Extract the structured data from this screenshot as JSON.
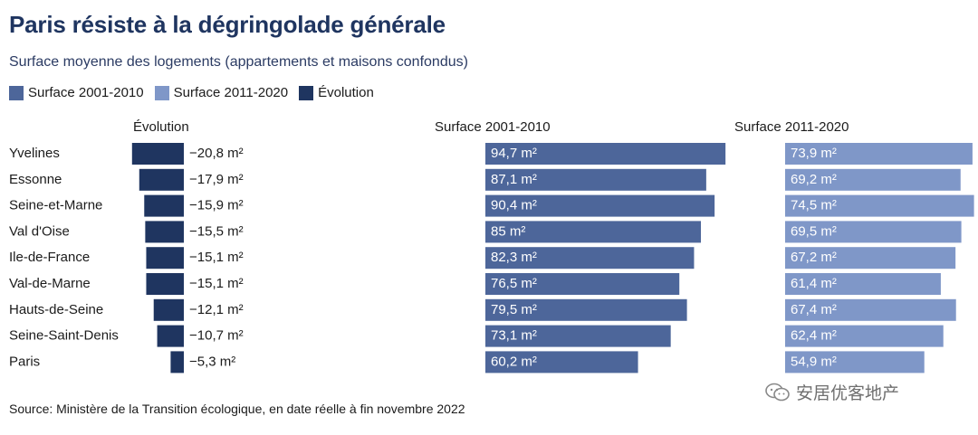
{
  "title": "Paris résiste à la dégringolade générale",
  "subtitle": "Surface moyenne des logements (appartements et maisons confondus)",
  "legend": [
    {
      "label": "Surface 2001-2010",
      "color": "#4d669a"
    },
    {
      "label": "Surface 2011-2020",
      "color": "#7f97c8"
    },
    {
      "label": "Évolution",
      "color": "#1f3560"
    }
  ],
  "columns": {
    "evolution": "Évolution",
    "surface_2001": "Surface 2001-2010",
    "surface_2011": "Surface 2011-2020"
  },
  "source": "Source: Ministère de la Transition écologique, en date réelle à fin novembre 2022",
  "watermark": "安居优客地产",
  "chart_data": {
    "type": "bar",
    "title": "Paris résiste à la dégringolade générale",
    "unit": "m²",
    "categories": [
      "Yvelines",
      "Essonne",
      "Seine-et-Marne",
      "Val d'Oise",
      "Ile-de-France",
      "Val-de-Marne",
      "Hauts-de-Seine",
      "Seine-Saint-Denis",
      "Paris"
    ],
    "series": [
      {
        "name": "Évolution",
        "color": "#1f3560",
        "values": [
          -20.8,
          -17.9,
          -15.9,
          -15.5,
          -15.1,
          -15.1,
          -12.1,
          -10.7,
          -5.3
        ],
        "labels": [
          "−20,8 m²",
          "−17,9 m²",
          "−15,9 m²",
          "−15,5 m²",
          "−15,1 m²",
          "−15,1 m²",
          "−12,1 m²",
          "−10,7 m²",
          "−5,3 m²"
        ]
      },
      {
        "name": "Surface 2001-2010",
        "color": "#4d669a",
        "values": [
          94.7,
          87.1,
          90.4,
          85,
          82.3,
          76.5,
          79.5,
          73.1,
          60.2
        ],
        "labels": [
          "94,7 m²",
          "87,1 m²",
          "90,4 m²",
          "85 m²",
          "82,3 m²",
          "76,5 m²",
          "79,5 m²",
          "73,1 m²",
          "60,2 m²"
        ]
      },
      {
        "name": "Surface 2011-2020",
        "color": "#7f97c8",
        "values": [
          73.9,
          69.2,
          74.5,
          69.5,
          67.2,
          61.4,
          67.4,
          62.4,
          54.9
        ],
        "labels": [
          "73,9 m²",
          "69,2 m²",
          "74,5 m²",
          "69,5 m²",
          "67,2 m²",
          "61,4 m²",
          "67,4 m²",
          "62,4 m²",
          "54,9 m²"
        ]
      }
    ]
  }
}
